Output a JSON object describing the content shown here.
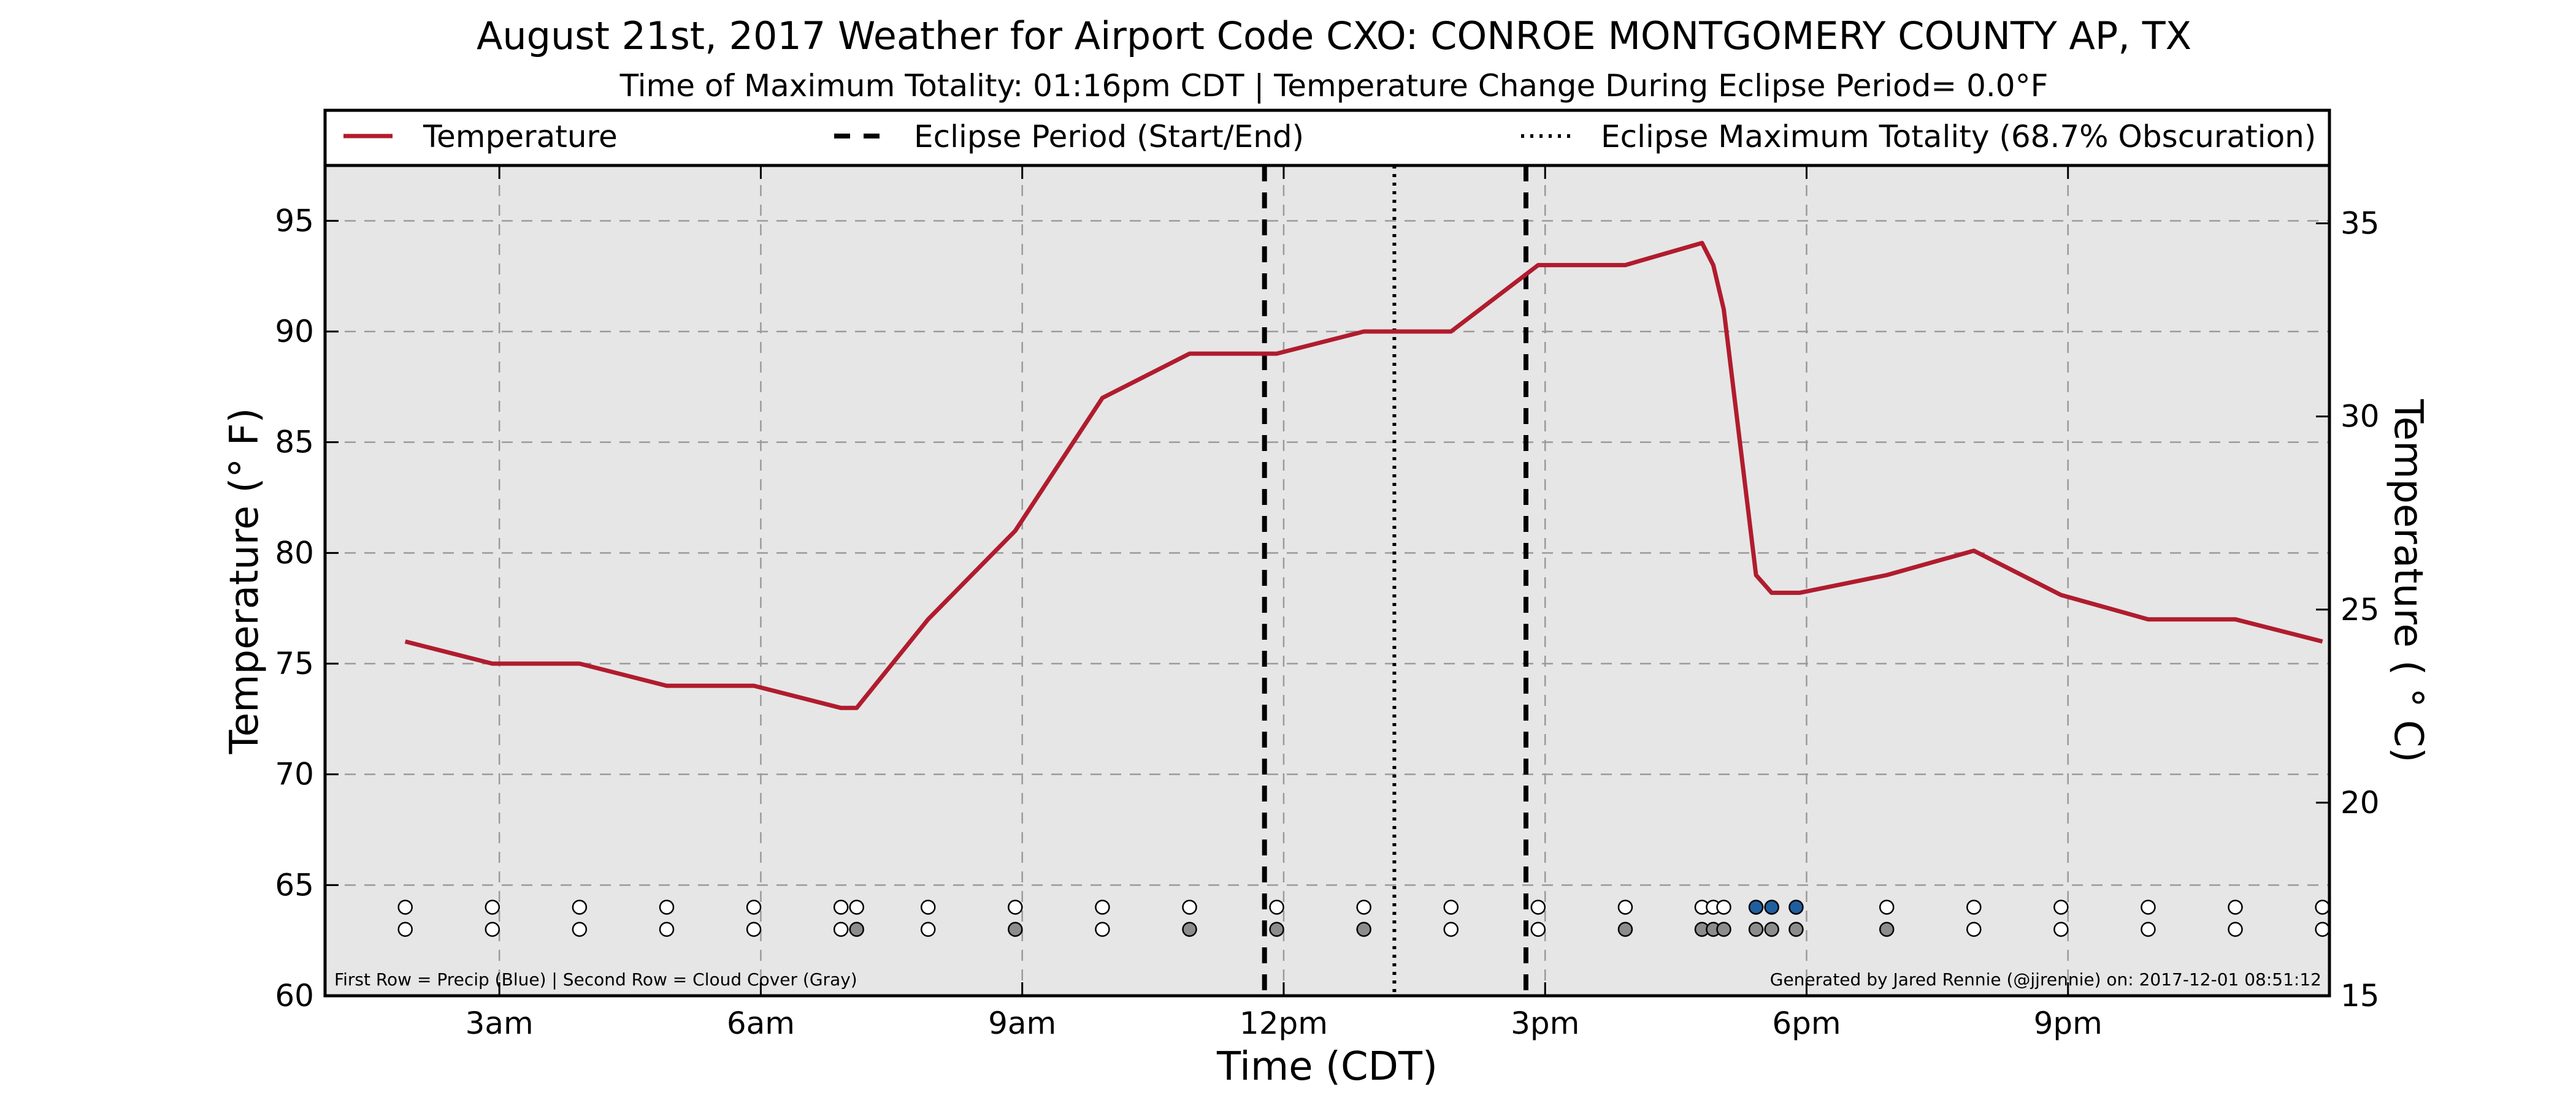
{
  "chart_data": {
    "type": "line",
    "title": "August 21st, 2017 Weather for Airport Code CXO: CONROE MONTGOMERY COUNTY AP, TX",
    "subtitle": "Time of Maximum Totality: 01:16pm CDT | Temperature Change During Eclipse Period= 0.0°F",
    "xlabel": "Time (CDT)",
    "ylabel": "Temperature (° F)",
    "ylabel_right": "Temperature ( ° C)",
    "xlim": [
      1.0,
      24.0
    ],
    "ylim": [
      60,
      97.5
    ],
    "ylim_right_c": [
      15,
      36.5
    ],
    "x_ticks": [
      {
        "x": 3,
        "label": "3am"
      },
      {
        "x": 6,
        "label": "6am"
      },
      {
        "x": 9,
        "label": "9am"
      },
      {
        "x": 12,
        "label": "12pm"
      },
      {
        "x": 15,
        "label": "3pm"
      },
      {
        "x": 18,
        "label": "6pm"
      },
      {
        "x": 21,
        "label": "9pm"
      }
    ],
    "y_ticks": [
      60,
      65,
      70,
      75,
      80,
      85,
      90,
      95
    ],
    "y_ticks_right": [
      15,
      20,
      25,
      30,
      35
    ],
    "grid": true,
    "legend": {
      "placement": "top",
      "entries": [
        {
          "label": "Temperature",
          "style": "solid"
        },
        {
          "label": "Eclipse Period (Start/End)",
          "style": "dashed"
        },
        {
          "label": "Eclipse Maximum Totality (68.7% Obscuration)",
          "style": "dotted"
        }
      ]
    },
    "series": [
      {
        "name": "Temperature",
        "color": "#b01c2e",
        "points": [
          [
            1.92,
            76
          ],
          [
            2.92,
            75
          ],
          [
            3.92,
            75
          ],
          [
            4.92,
            74
          ],
          [
            5.92,
            74
          ],
          [
            6.92,
            73
          ],
          [
            7.1,
            73
          ],
          [
            7.92,
            77
          ],
          [
            8.92,
            81
          ],
          [
            9.92,
            87
          ],
          [
            10.92,
            89
          ],
          [
            11.92,
            89
          ],
          [
            12.92,
            90
          ],
          [
            13.92,
            90
          ],
          [
            14.92,
            93
          ],
          [
            15.92,
            93
          ],
          [
            16.8,
            94
          ],
          [
            16.93,
            93
          ],
          [
            17.05,
            91
          ],
          [
            17.42,
            79
          ],
          [
            17.6,
            78.2
          ],
          [
            17.92,
            78.2
          ],
          [
            18.92,
            79
          ],
          [
            19.92,
            80.1
          ],
          [
            20.92,
            78.1
          ],
          [
            21.92,
            77
          ],
          [
            22.92,
            77
          ],
          [
            23.92,
            76
          ]
        ]
      }
    ],
    "eclipse_start": 11.78,
    "eclipse_end": 14.78,
    "max_totality": 13.27,
    "precip_row_y": 64,
    "cloud_row_y": 63,
    "observations": [
      {
        "x": 1.92,
        "precip": "none",
        "cloud": "clear"
      },
      {
        "x": 2.92,
        "precip": "none",
        "cloud": "clear"
      },
      {
        "x": 3.92,
        "precip": "none",
        "cloud": "clear"
      },
      {
        "x": 4.92,
        "precip": "none",
        "cloud": "clear"
      },
      {
        "x": 5.92,
        "precip": "none",
        "cloud": "clear"
      },
      {
        "x": 6.92,
        "precip": "none",
        "cloud": "clear"
      },
      {
        "x": 7.1,
        "precip": "none",
        "cloud": "cloudy"
      },
      {
        "x": 7.92,
        "precip": "none",
        "cloud": "clear"
      },
      {
        "x": 8.92,
        "precip": "none",
        "cloud": "cloudy"
      },
      {
        "x": 9.92,
        "precip": "none",
        "cloud": "clear"
      },
      {
        "x": 10.92,
        "precip": "none",
        "cloud": "cloudy"
      },
      {
        "x": 11.92,
        "precip": "none",
        "cloud": "cloudy"
      },
      {
        "x": 12.92,
        "precip": "none",
        "cloud": "cloudy"
      },
      {
        "x": 13.92,
        "precip": "none",
        "cloud": "clear"
      },
      {
        "x": 14.92,
        "precip": "none",
        "cloud": "clear"
      },
      {
        "x": 15.92,
        "precip": "none",
        "cloud": "cloudy"
      },
      {
        "x": 16.8,
        "precip": "none",
        "cloud": "cloudy"
      },
      {
        "x": 16.93,
        "precip": "none",
        "cloud": "cloudy"
      },
      {
        "x": 17.05,
        "precip": "none",
        "cloud": "cloudy"
      },
      {
        "x": 17.42,
        "precip": "rain",
        "cloud": "cloudy"
      },
      {
        "x": 17.6,
        "precip": "rain",
        "cloud": "cloudy"
      },
      {
        "x": 17.88,
        "precip": "rain",
        "cloud": "cloudy"
      },
      {
        "x": 18.92,
        "precip": "none",
        "cloud": "cloudy"
      },
      {
        "x": 19.92,
        "precip": "none",
        "cloud": "clear"
      },
      {
        "x": 20.92,
        "precip": "none",
        "cloud": "clear"
      },
      {
        "x": 21.92,
        "precip": "none",
        "cloud": "clear"
      },
      {
        "x": 22.92,
        "precip": "none",
        "cloud": "clear"
      },
      {
        "x": 23.92,
        "precip": "none",
        "cloud": "clear"
      }
    ],
    "footnote_left": "First Row = Precip (Blue) | Second Row = Cloud Cover (Gray)",
    "footnote_right": "Generated by Jared Rennie (@jjrennie) on: 2017-12-01 08:51:12",
    "colors": {
      "line": "#b01c2e",
      "plot_background": "#e6e6e6",
      "precip_marker": "#1f5fa0",
      "cloud_marker": "#8c8c8c",
      "empty_marker": "#ffffff"
    }
  }
}
